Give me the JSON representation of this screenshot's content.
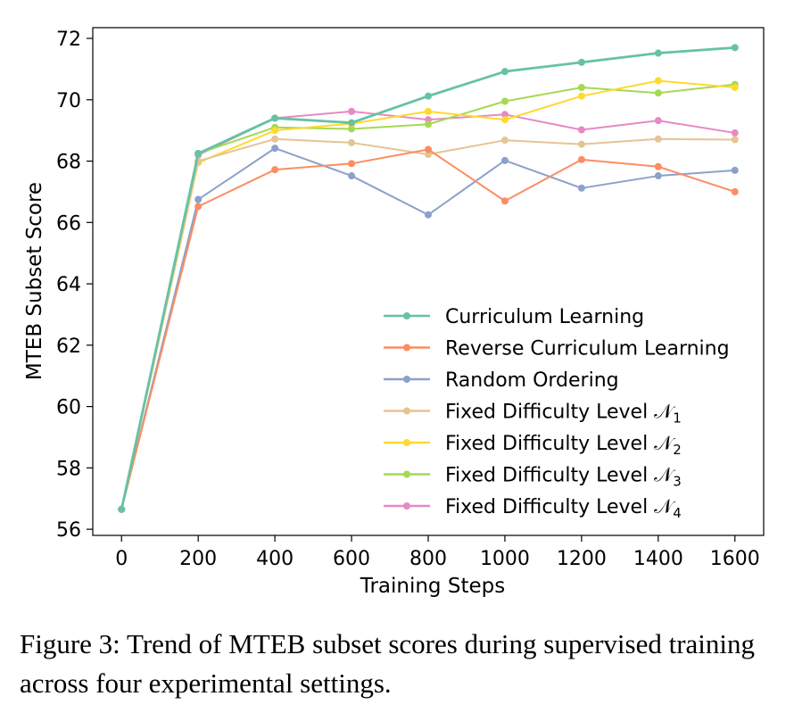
{
  "chart_data": {
    "type": "line",
    "xlabel": "Training Steps",
    "ylabel": "MTEB Subset Score",
    "x": [
      0,
      200,
      400,
      600,
      800,
      1000,
      1200,
      1400,
      1600
    ],
    "xticks": [
      0,
      200,
      400,
      600,
      800,
      1000,
      1200,
      1400,
      1600
    ],
    "yticks": [
      56,
      58,
      60,
      62,
      64,
      66,
      68,
      70,
      72
    ],
    "xlim": [
      -75,
      1675
    ],
    "ylim": [
      55.8,
      72.35
    ],
    "grid": false,
    "legend_position": "lower-right",
    "series": [
      {
        "name": "Curriculum Learning",
        "sub": "",
        "color": "#66c2a5",
        "values": [
          56.65,
          68.25,
          69.4,
          69.25,
          70.12,
          70.92,
          71.22,
          71.52,
          71.7
        ]
      },
      {
        "name": "Reverse Curriculum Learning",
        "sub": "",
        "color": "#fc8d62",
        "values": [
          56.65,
          66.52,
          67.72,
          67.92,
          68.38,
          66.7,
          68.05,
          67.82,
          67.0
        ]
      },
      {
        "name": "Random Ordering",
        "sub": "",
        "color": "#8da0cb",
        "values": [
          56.65,
          66.75,
          68.42,
          67.52,
          66.25,
          68.02,
          67.12,
          67.52,
          67.7
        ]
      },
      {
        "name": "Fixed Difficulty Level 𝒩",
        "sub": "1",
        "color": "#e5c494",
        "values": [
          56.65,
          68.0,
          68.72,
          68.6,
          68.22,
          68.68,
          68.55,
          68.72,
          68.7
        ]
      },
      {
        "name": "Fixed Difficulty Level 𝒩",
        "sub": "2",
        "color": "#ffd92f",
        "values": [
          56.65,
          67.95,
          69.0,
          69.22,
          69.62,
          69.35,
          70.12,
          70.62,
          70.4
        ]
      },
      {
        "name": "Fixed Difficulty Level 𝒩",
        "sub": "3",
        "color": "#a6d854",
        "values": [
          56.65,
          68.25,
          69.1,
          69.05,
          69.2,
          69.95,
          70.4,
          70.22,
          70.5
        ]
      },
      {
        "name": "Fixed Difficulty Level 𝒩",
        "sub": "4",
        "color": "#e78ac3",
        "values": [
          56.65,
          68.2,
          69.4,
          69.62,
          69.35,
          69.52,
          69.02,
          69.32,
          68.92
        ]
      }
    ]
  },
  "caption": "Figure 3: Trend of MTEB subset scores during supervised training across four experimental settings."
}
